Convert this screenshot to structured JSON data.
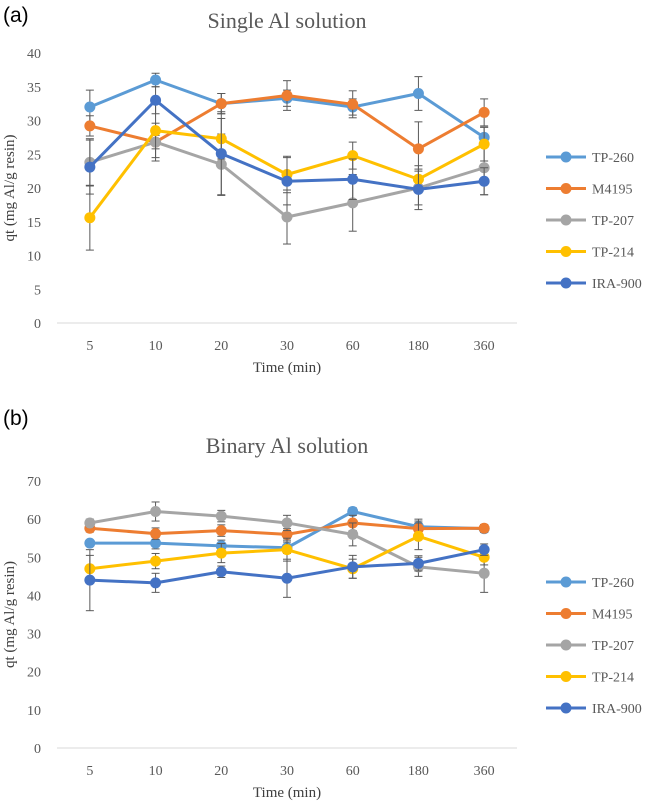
{
  "chart_data": [
    {
      "panel": "(a)",
      "type": "line",
      "title": "Single Al solution",
      "xlabel": "Time (min)",
      "ylabel": "qt (mg Al/g resin)",
      "categories": [
        "5",
        "10",
        "20",
        "30",
        "60",
        "180",
        "360"
      ],
      "ylim": [
        0,
        40
      ],
      "yticks": [
        0,
        5,
        10,
        15,
        20,
        25,
        30,
        35,
        40
      ],
      "grid": false,
      "legend": "right",
      "series": [
        {
          "name": "TP-260",
          "color": "#5B9BD5",
          "values": [
            32.0,
            36.0,
            32.5,
            33.3,
            32.0,
            34.0,
            27.5
          ],
          "errors": [
            2.5,
            1.0,
            1.5,
            1.2,
            1.2,
            2.5,
            1.5
          ]
        },
        {
          "name": "M4195",
          "color": "#ED7D31",
          "values": [
            29.2,
            26.8,
            32.5,
            33.7,
            32.4,
            25.8,
            31.2
          ],
          "errors": [
            1.5,
            1.0,
            1.5,
            2.2,
            2.0,
            4.0,
            2.0
          ]
        },
        {
          "name": "TP-207",
          "color": "#A5A5A5",
          "values": [
            23.8,
            26.8,
            23.5,
            15.7,
            17.8,
            20.0,
            23.0
          ],
          "errors": [
            3.5,
            2.8,
            4.5,
            4.0,
            4.2,
            2.5,
            4.0
          ]
        },
        {
          "name": "TP-214",
          "color": "#FFC000",
          "values": [
            15.6,
            28.5,
            27.3,
            22.0,
            24.8,
            21.3,
            26.5
          ],
          "errors": [
            4.8,
            4.0,
            3.0,
            2.7,
            2.0,
            2.0,
            2.5
          ]
        },
        {
          "name": "IRA-900",
          "color": "#4472C4",
          "values": [
            23.1,
            33.0,
            25.1,
            21.0,
            21.3,
            19.8,
            21.0
          ],
          "errors": [
            4.0,
            2.0,
            6.2,
            3.5,
            3.0,
            3.0,
            2.0
          ]
        }
      ]
    },
    {
      "panel": "(b)",
      "type": "line",
      "title": "Binary Al solution",
      "xlabel": "Time (min)",
      "ylabel": "qt (mg Al/g resin)",
      "categories": [
        "5",
        "10",
        "20",
        "30",
        "60",
        "180",
        "360"
      ],
      "ylim": [
        0,
        70
      ],
      "yticks": [
        0,
        10,
        20,
        30,
        40,
        50,
        60,
        70
      ],
      "grid": false,
      "legend": "right",
      "series": [
        {
          "name": "TP-260",
          "color": "#5B9BD5",
          "values": [
            53.7,
            53.7,
            53.0,
            52.5,
            62.0,
            58.0,
            57.5
          ],
          "errors": [
            0.8,
            1.5,
            1.5,
            1.5,
            1.0,
            2.0,
            1.0
          ]
        },
        {
          "name": "M4195",
          "color": "#ED7D31",
          "values": [
            57.6,
            56.2,
            57.0,
            56.0,
            59.0,
            57.5,
            57.6
          ],
          "errors": [
            1.0,
            1.5,
            1.5,
            1.5,
            2.0,
            2.0,
            1.0
          ]
        },
        {
          "name": "TP-207",
          "color": "#A5A5A5",
          "values": [
            59.0,
            62.0,
            60.8,
            59.0,
            56.0,
            47.5,
            45.8
          ],
          "errors": [
            1.0,
            2.5,
            1.5,
            2.0,
            3.0,
            2.5,
            5.0
          ]
        },
        {
          "name": "TP-214",
          "color": "#FFC000",
          "values": [
            47.0,
            49.0,
            51.1,
            52.0,
            47.0,
            55.5,
            50.0
          ],
          "errors": [
            3.5,
            2.0,
            2.5,
            3.0,
            2.5,
            3.5,
            2.0
          ]
        },
        {
          "name": "IRA-900",
          "color": "#4472C4",
          "values": [
            44.0,
            43.3,
            46.2,
            44.5,
            47.5,
            48.4,
            52.0
          ],
          "errors": [
            8.0,
            2.5,
            1.5,
            5.0,
            3.0,
            2.0,
            1.5
          ]
        }
      ]
    }
  ]
}
